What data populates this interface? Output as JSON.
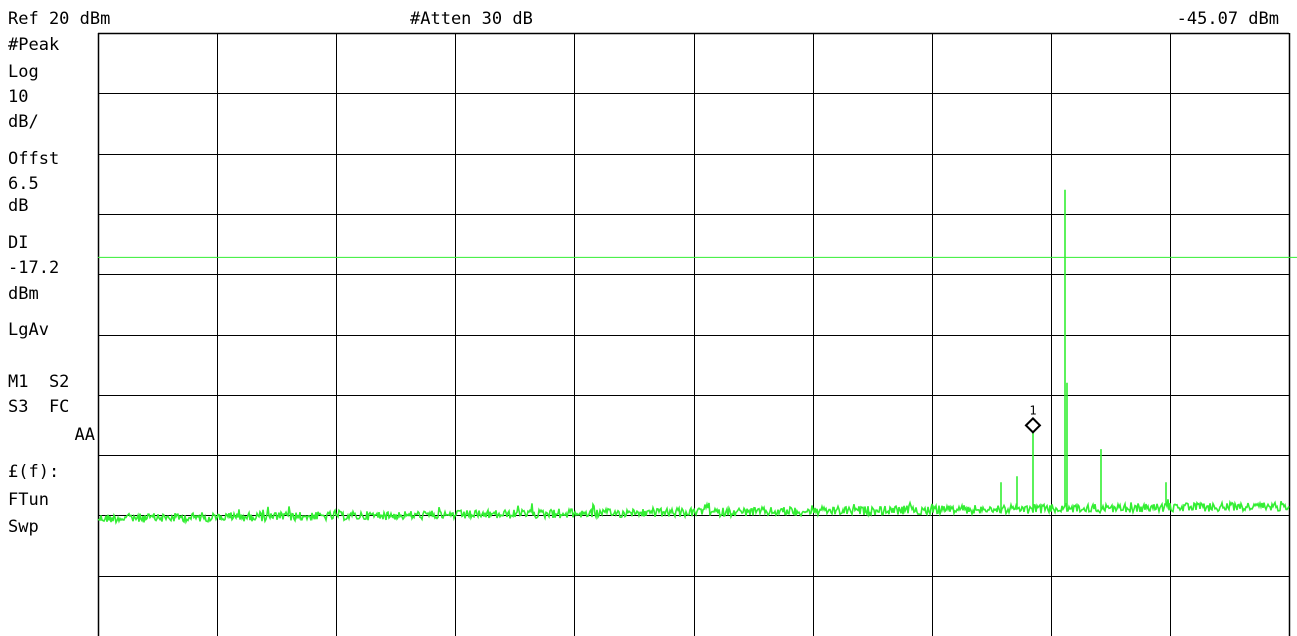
{
  "header": {
    "ref_level": "Ref 20 dBm",
    "attenuation": "#Atten 30 dB",
    "marker_readout": "-45.07 dBm"
  },
  "side_panel": [
    {
      "text": "#Peak",
      "row": 0
    },
    {
      "text": "Log",
      "row": 1
    },
    {
      "text": "10",
      "row": 2
    },
    {
      "text": "dB/",
      "row": 3
    },
    {
      "text": "Offst",
      "row": 4
    },
    {
      "text": "6.5",
      "row": 5
    },
    {
      "text": "dB",
      "row": 6
    },
    {
      "text": "DI",
      "row": 7
    },
    {
      "text": "-17.2",
      "row": 8
    },
    {
      "text": "dBm",
      "row": 9
    },
    {
      "text": "LgAv",
      "row": 10
    },
    {
      "text": "M1  S2",
      "row": 11
    },
    {
      "text": "S3  FC",
      "row": 12
    },
    {
      "text": "AA",
      "row": 13
    },
    {
      "text": "£(f):",
      "row": 14
    },
    {
      "text": "FTun",
      "row": 15
    },
    {
      "text": "Swp",
      "row": 16
    }
  ],
  "colors": {
    "trace": "#33ee33",
    "display_line": "#33ee33",
    "grid": "#000000",
    "background": "#ffffff"
  },
  "chart_data": {
    "type": "line",
    "grid": {
      "x_divisions": 10,
      "y_divisions": 10
    },
    "y_scale": {
      "ref_level_dbm": 20,
      "db_per_div": 10,
      "scale": "log"
    },
    "ylim": [
      -80,
      20
    ],
    "xlim": [
      0,
      10
    ],
    "display_line_dbm": -17.2,
    "noise_floor_dbm": -59.5,
    "series": [
      {
        "noise_floor_left_dbm": -60.5,
        "noise_floor_right_dbm": -58.5,
        "peaks": [
          {
            "x": 7.85,
            "y": -45.07
          },
          {
            "x": 8.12,
            "y": -6.0
          },
          {
            "x": 8.14,
            "y": -38.0
          },
          {
            "x": 8.42,
            "y": -49.0
          },
          {
            "x": 7.58,
            "y": -54.5
          },
          {
            "x": 7.72,
            "y": -53.5
          },
          {
            "x": 8.97,
            "y": -54.5
          }
        ]
      }
    ],
    "marker": {
      "label": "1",
      "x": 7.85,
      "y": -45.07
    }
  }
}
